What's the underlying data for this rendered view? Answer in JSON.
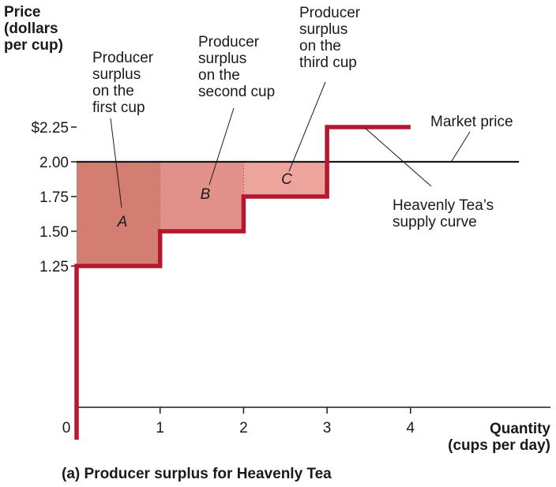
{
  "chart_data": {
    "type": "step",
    "title": "",
    "caption": "(a) Producer surplus for Heavenly Tea",
    "ylabel": [
      "Price",
      "(dollars",
      "per cup)"
    ],
    "xlabel": [
      "Quantity",
      "(cups per day)"
    ],
    "xlim": [
      0,
      5.5
    ],
    "ylim": [
      0,
      2.45
    ],
    "x_ticks": [
      {
        "value": 0,
        "label": "0"
      },
      {
        "value": 1,
        "label": "1"
      },
      {
        "value": 2,
        "label": "2"
      },
      {
        "value": 3,
        "label": "3"
      },
      {
        "value": 4,
        "label": "4"
      }
    ],
    "y_ticks": [
      {
        "value": 2.25,
        "label": "$2.25"
      },
      {
        "value": 2.0,
        "label": "2.00"
      },
      {
        "value": 1.75,
        "label": "1.75"
      },
      {
        "value": 1.5,
        "label": "1.50"
      },
      {
        "value": 1.25,
        "label": "1.25"
      }
    ],
    "market_price": {
      "price": 2.0,
      "x_end": 5.3,
      "label": "Market price",
      "color": "#1a1a1a"
    },
    "supply_curve": {
      "label": [
        "Heavenly Tea’s",
        "supply curve"
      ],
      "color": "#b5172e",
      "points": [
        [
          0,
          0
        ],
        [
          0,
          1.25
        ],
        [
          1,
          1.25
        ],
        [
          1,
          1.5
        ],
        [
          2,
          1.5
        ],
        [
          2,
          1.75
        ],
        [
          3,
          1.75
        ],
        [
          3,
          2.25
        ],
        [
          4,
          2.25
        ]
      ]
    },
    "surplus_areas": [
      {
        "letter": "A",
        "x0": 0,
        "x1": 1,
        "price": 1.25,
        "color": "#d47d73",
        "label": [
          "Producer",
          "surplus",
          "on the",
          "first cup"
        ]
      },
      {
        "letter": "B",
        "x0": 1,
        "x1": 2,
        "price": 1.5,
        "color": "#e2918a",
        "label": [
          "Producer",
          "surplus",
          "on the",
          "second cup"
        ]
      },
      {
        "letter": "C",
        "x0": 2,
        "x1": 3,
        "price": 1.75,
        "color": "#eda49c",
        "label": [
          "Producer",
          "surplus",
          "on the",
          "third cup"
        ]
      }
    ]
  }
}
